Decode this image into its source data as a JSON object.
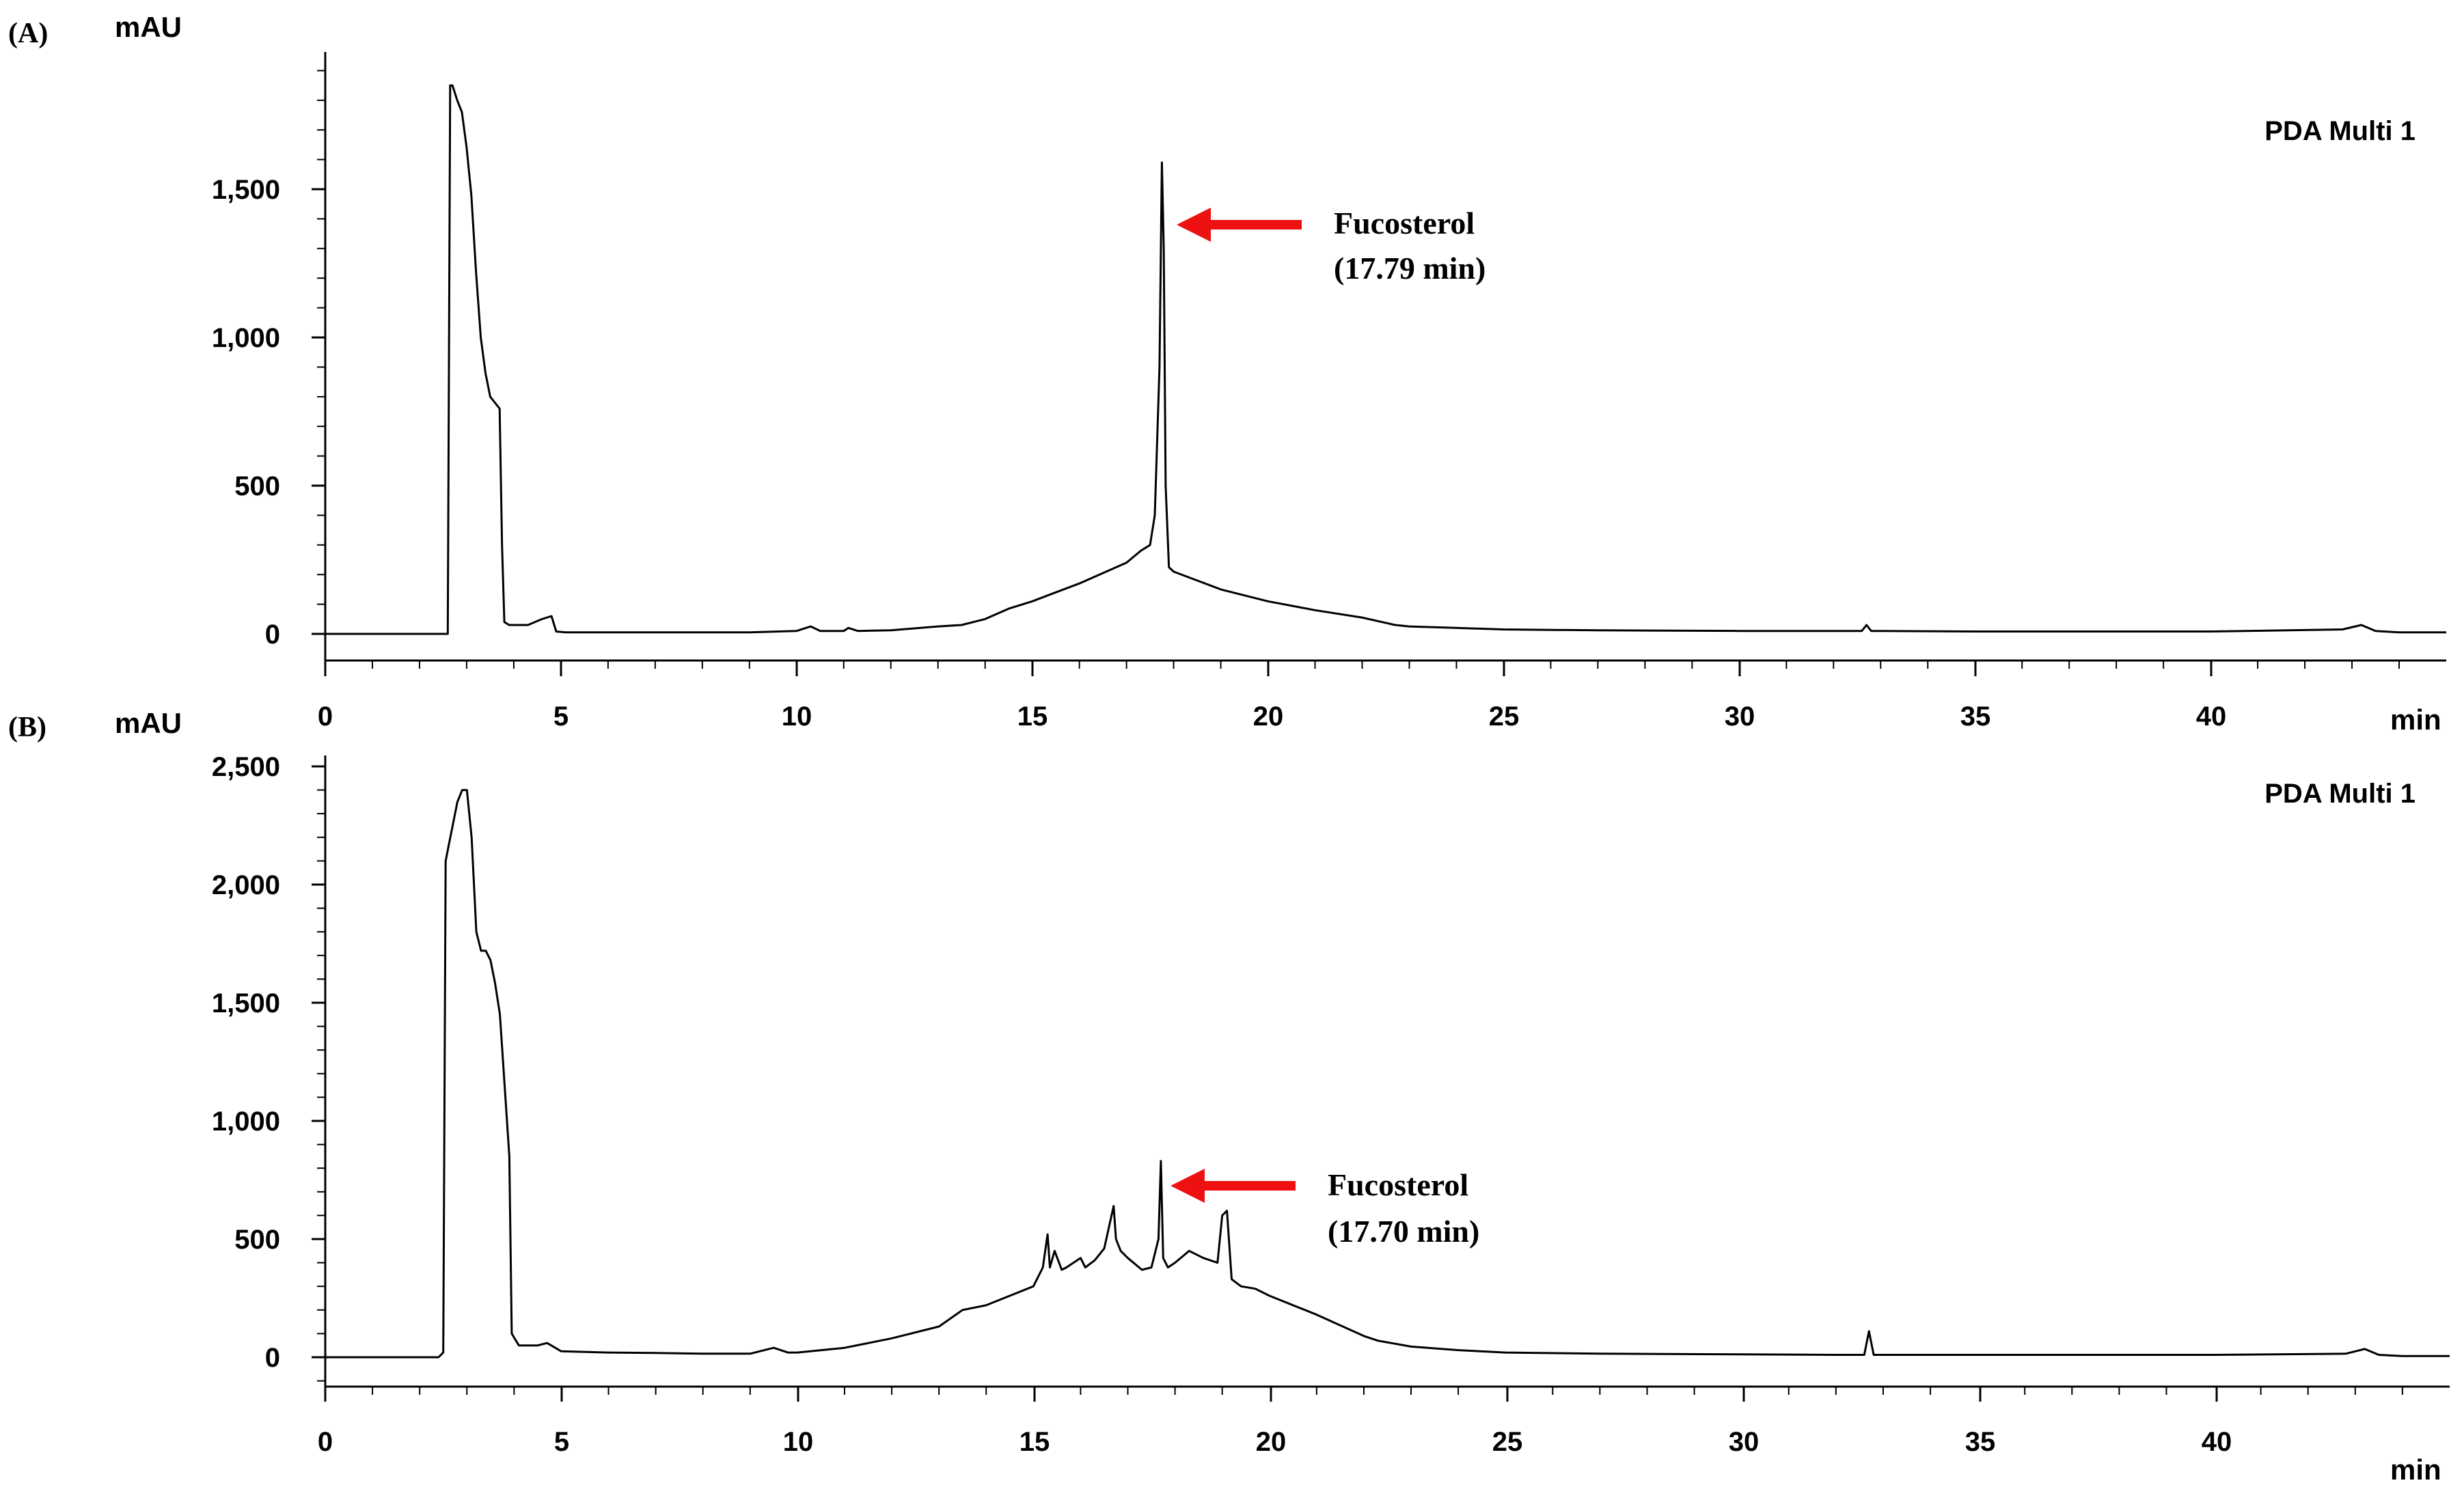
{
  "chart_data": [
    {
      "panel": "(A)",
      "type": "line",
      "legend": "PDA Multi 1",
      "legend_position": "top-right",
      "ylabel": "mAU",
      "xlabel": "min",
      "xlim": [
        0,
        45
      ],
      "ylim": [
        -100,
        1960
      ],
      "xticks": [
        0,
        5,
        10,
        15,
        20,
        25,
        30,
        35,
        40
      ],
      "xtick_labels": [
        "0",
        "5",
        "10",
        "15",
        "20",
        "25",
        "30",
        "35",
        "40"
      ],
      "yticks": [
        0,
        500,
        1000,
        1500
      ],
      "ytick_labels": [
        "0",
        "500",
        "1,000",
        "1,500"
      ],
      "grid": false,
      "annotation": {
        "line1": "Fucosterol",
        "line2": "(17.79 min)",
        "x": 17.79,
        "y": 1390,
        "arrow_color": "#ee1111"
      },
      "series": [
        {
          "x": [
            0,
            2.6,
            2.65,
            2.7,
            2.8,
            2.9,
            3.0,
            3.1,
            3.2,
            3.3,
            3.4,
            3.5,
            3.6,
            3.7,
            3.75,
            3.8,
            3.9,
            4.0,
            4.3,
            4.6,
            4.8,
            4.9,
            5.1,
            6,
            7,
            8,
            9,
            10,
            10.3,
            10.5,
            11,
            11.1,
            11.3,
            12,
            13,
            13.5,
            14,
            14.5,
            15,
            15.5,
            16,
            16.5,
            17,
            17.3,
            17.5,
            17.6,
            17.7,
            17.75,
            17.79,
            17.83,
            17.9,
            18.0,
            18.5,
            19,
            20,
            21,
            22,
            22.7,
            23,
            24,
            25,
            27,
            30,
            32,
            32.6,
            32.7,
            32.8,
            33,
            35,
            40,
            42.8,
            43.2,
            43.5,
            44,
            45
          ],
          "y": [
            0,
            0,
            1850,
            1850,
            1800,
            1760,
            1640,
            1480,
            1220,
            1000,
            880,
            800,
            780,
            760,
            300,
            40,
            30,
            30,
            30,
            50,
            60,
            8,
            5,
            5,
            5,
            5,
            5,
            10,
            25,
            10,
            10,
            20,
            10,
            12,
            25,
            30,
            50,
            85,
            110,
            140,
            170,
            205,
            240,
            280,
            300,
            400,
            900,
            1590,
            1300,
            500,
            225,
            210,
            180,
            150,
            110,
            80,
            55,
            30,
            25,
            20,
            15,
            12,
            10,
            10,
            10,
            30,
            10,
            10,
            8,
            8,
            15,
            30,
            10,
            5,
            5
          ]
        }
      ]
    },
    {
      "panel": "(B)",
      "type": "line",
      "legend": "PDA Multi 1",
      "legend_position": "top-right",
      "ylabel": "mAU",
      "xlabel": "min",
      "xlim": [
        0,
        45
      ],
      "ylim": [
        -120,
        2540
      ],
      "xticks": [
        0,
        5,
        10,
        15,
        20,
        25,
        30,
        35,
        40
      ],
      "xtick_labels": [
        "0",
        "5",
        "10",
        "15",
        "20",
        "25",
        "30",
        "35",
        "40"
      ],
      "yticks": [
        0,
        500,
        1000,
        1500,
        2000,
        2500
      ],
      "ytick_labels": [
        "0",
        "500",
        "1,000",
        "1,500",
        "2,000",
        "2,500"
      ],
      "grid": false,
      "annotation": {
        "line1": "Fucosterol",
        "line2": "(17.70 min)",
        "x": 17.7,
        "y": 730,
        "arrow_color": "#ee1111"
      },
      "series": [
        {
          "x": [
            0,
            2.4,
            2.5,
            2.55,
            2.6,
            2.7,
            2.8,
            2.9,
            3.0,
            3.1,
            3.2,
            3.3,
            3.4,
            3.5,
            3.6,
            3.7,
            3.8,
            3.9,
            3.95,
            4.1,
            4.5,
            4.7,
            5,
            6,
            7,
            8,
            9,
            9.5,
            9.8,
            10,
            11,
            12,
            13,
            13.5,
            14,
            14.5,
            15,
            15.2,
            15.3,
            15.35,
            15.45,
            15.6,
            15.7,
            16.0,
            16.1,
            16.3,
            16.5,
            16.7,
            16.75,
            16.85,
            17.0,
            17.3,
            17.5,
            17.65,
            17.7,
            17.75,
            17.85,
            18.0,
            18.3,
            18.6,
            18.9,
            19.0,
            19.1,
            19.2,
            19.4,
            19.7,
            20,
            21,
            22,
            22.3,
            23,
            24,
            25,
            27,
            30,
            32,
            32.6,
            32.7,
            32.8,
            33,
            35,
            40,
            42.8,
            43.2,
            43.5,
            44,
            45
          ],
          "y": [
            0,
            0,
            20,
            2100,
            2150,
            2250,
            2350,
            2400,
            2400,
            2200,
            1800,
            1720,
            1720,
            1680,
            1580,
            1450,
            1150,
            850,
            100,
            50,
            50,
            60,
            25,
            20,
            18,
            15,
            15,
            40,
            20,
            20,
            40,
            80,
            130,
            200,
            220,
            260,
            300,
            380,
            520,
            380,
            450,
            370,
            380,
            420,
            380,
            410,
            460,
            640,
            500,
            450,
            420,
            370,
            380,
            500,
            830,
            420,
            380,
            400,
            450,
            420,
            400,
            600,
            620,
            330,
            300,
            290,
            260,
            180,
            90,
            70,
            45,
            30,
            20,
            15,
            12,
            10,
            10,
            110,
            10,
            10,
            10,
            10,
            15,
            35,
            10,
            5,
            5
          ]
        }
      ]
    }
  ]
}
